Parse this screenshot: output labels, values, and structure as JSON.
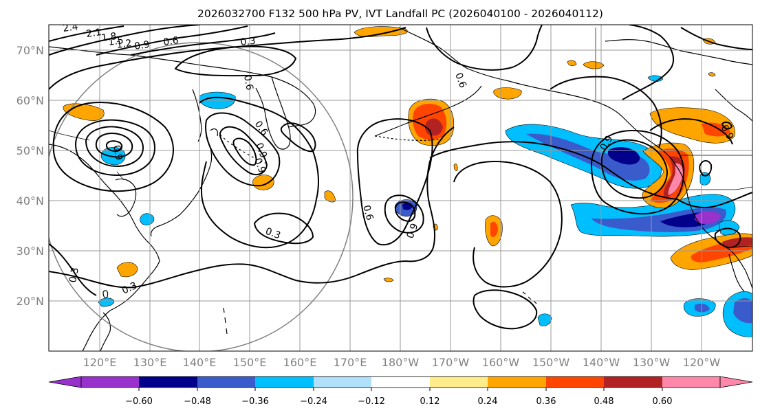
{
  "title": "2026032700 F132 500 hPa PV, IVT Landfall PC (2026040100 - 2026040112)",
  "lat_labels": [
    "70°N",
    "60°N",
    "50°N",
    "40°N",
    "30°N",
    "20°N"
  ],
  "lon_labels": [
    "120°E",
    "130°E",
    "140°E",
    "150°E",
    "160°E",
    "170°E",
    "180°W",
    "170°W",
    "160°W",
    "150°W",
    "140°W",
    "130°W",
    "120°W"
  ],
  "contour_labels": [
    "2.4",
    "2.1",
    "1.8",
    "1.5",
    "1.2",
    "0.9",
    "0.6",
    "0.3",
    "0.6",
    "0.6",
    "0.9",
    "0.9",
    "0.3",
    "0.9",
    "0.9",
    "0.6",
    "0.3",
    "0.3",
    "0.9",
    "0.6",
    "0.9"
  ],
  "colorbar": {
    "ticks": [
      "−0.60",
      "−0.48",
      "−0.36",
      "−0.24",
      "−0.12",
      "0.12",
      "0.24",
      "0.36",
      "0.48",
      "0.60"
    ],
    "colors": [
      "#9932cc",
      "#00008b",
      "#3a5bcc",
      "#00bfff",
      "#b0e0fa",
      "#ffffff",
      "#ffec8b",
      "#ffa500",
      "#ff4500",
      "#b22222",
      "#ff88aa"
    ]
  },
  "colors": {
    "neg_strong": "#00008b",
    "neg_mid": "#3a5bcc",
    "neg_light": "#00bfff",
    "neg_faint": "#b0e0fa",
    "neg_purple": "#9932cc",
    "pos_faint": "#ffec8b",
    "pos_light": "#ffa500",
    "pos_mid": "#ff4500",
    "pos_strong": "#b22222",
    "pos_pink": "#ff88aa"
  }
}
